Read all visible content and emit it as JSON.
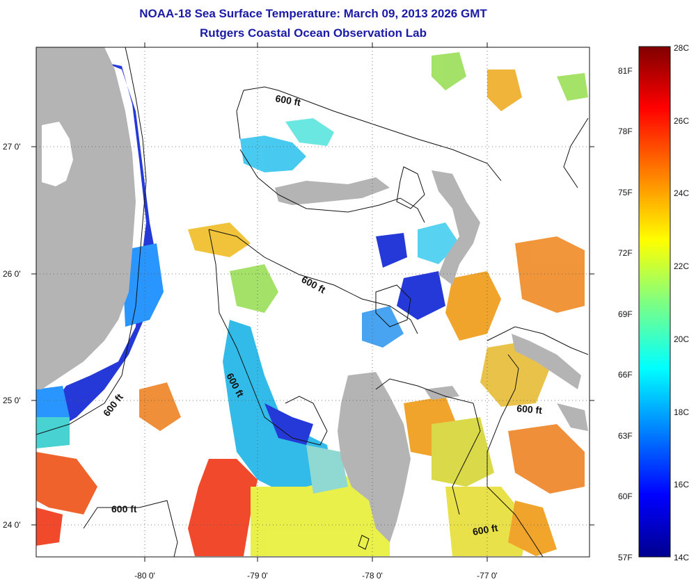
{
  "header": {
    "title": "NOAA-18 Sea Surface Temperature:  March 09, 2013 2026 GMT",
    "subtitle": "Rutgers Coastal Ocean Observation Lab"
  },
  "axes": {
    "x_ticks": [
      "-80 0'",
      "-79 0'",
      "-78 0'",
      "-77 0'"
    ],
    "y_ticks": [
      "27 0'",
      "26 0'",
      "25 0'",
      "24 0'"
    ]
  },
  "contours": {
    "label": "600 ft"
  },
  "colorbar": {
    "celsius": [
      "28C",
      "26C",
      "24C",
      "22C",
      "20C",
      "18C",
      "16C",
      "14C"
    ],
    "fahrenheit": [
      "81F",
      "78F",
      "75F",
      "72F",
      "69F",
      "66F",
      "63F",
      "60F",
      "57F"
    ],
    "colors": [
      "#00008f",
      "#0000ff",
      "#0080ff",
      "#00ffff",
      "#80ff80",
      "#ffff00",
      "#ff8000",
      "#ff0000",
      "#800000"
    ]
  },
  "map_colors": {
    "land": "#b4b4b4",
    "no_data": "#ffffff"
  }
}
